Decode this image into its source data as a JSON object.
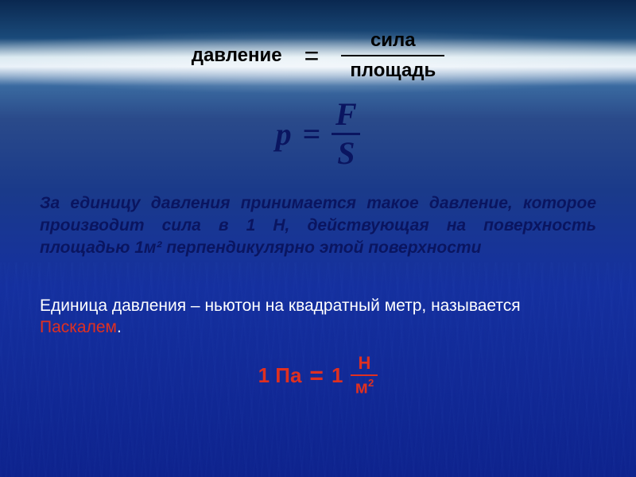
{
  "formula_words": {
    "lhs": "давление",
    "equals": "=",
    "numerator": "сила",
    "denominator": "площадь",
    "line_color": "#000000",
    "text_color": "#000000",
    "fontsize": 24
  },
  "formula_symbols": {
    "lhs": "p",
    "equals": "=",
    "numerator": "F",
    "denominator": "S",
    "text_color": "#0a1560",
    "fontsize": 40,
    "font_style": "italic",
    "font_family": "Times New Roman"
  },
  "definition": {
    "text": "За единицу давления принимается такое давление, которое производит сила в 1 Н, действующая на поверхность площадью 1м² перпендикулярно этой поверхности",
    "text_color": "#0a1560",
    "fontsize": 21,
    "font_style": "italic",
    "font_weight": "bold"
  },
  "unit_sentence": {
    "prefix": "Единица давления – ньютон на квадратный метр, называется ",
    "highlight": "Паскалем",
    "suffix": ".",
    "text_color": "#ffffff",
    "highlight_color": "#e03020",
    "fontsize": 21
  },
  "unit_formula": {
    "lhs": "1 Па",
    "equals": "=",
    "rhs_scalar": "1",
    "numerator": "Н",
    "denominator_base": "м",
    "denominator_exp": "2",
    "text_color": "#e03020",
    "fontsize": 26
  },
  "background": {
    "gradient_stops": [
      "#0a2850",
      "#1a4a7a",
      "#d8e8f0",
      "#e8f0f8",
      "#3a6aa0",
      "#2a4a8a",
      "#1a3a8a",
      "#1530a0",
      "#1028a0"
    ]
  }
}
